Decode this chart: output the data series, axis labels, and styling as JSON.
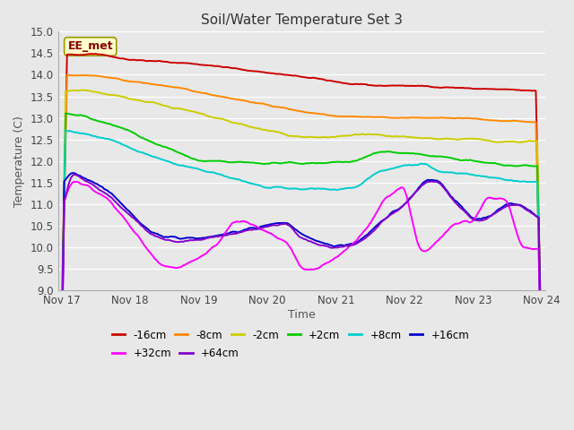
{
  "title": "Soil/Water Temperature Set 3",
  "ylabel": "Temperature (C)",
  "xlabel": "Time",
  "ylim": [
    9.0,
    15.0
  ],
  "yticks": [
    9.0,
    9.5,
    10.0,
    10.5,
    11.0,
    11.5,
    12.0,
    12.5,
    13.0,
    13.5,
    14.0,
    14.5,
    15.0
  ],
  "bg_color": "#e8e8e8",
  "grid_color": "#ffffff",
  "annotation_text": "EE_met",
  "annotation_bg": "#ffffcc",
  "annotation_border": "#999900",
  "series_colors": {
    "-16cm": "#cc0000",
    "-8cm": "#ff8800",
    "-2cm": "#cccc00",
    "+2cm": "#00cc00",
    "+8cm": "#00cccc",
    "+16cm": "#0000cc",
    "+32cm": "#ff00ff",
    "+64cm": "#8800cc"
  },
  "x_ticks_labels": [
    "Nov 17",
    "Nov 18",
    "Nov 19",
    "Nov 20",
    "Nov 21",
    "Nov 22",
    "Nov 23",
    "Nov 24"
  ],
  "x_ticks_positions": [
    0,
    1,
    2,
    3,
    4,
    5,
    6,
    7
  ],
  "xlim": [
    -0.05,
    7.05
  ],
  "figsize": [
    6.4,
    4.8
  ],
  "dpi": 100
}
